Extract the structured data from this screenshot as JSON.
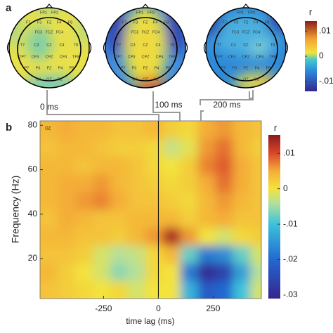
{
  "panel_a": {
    "label": "a",
    "maps": [
      {
        "label": "0 ms"
      },
      {
        "label": "100 ms"
      },
      {
        "label": "200 ms"
      }
    ],
    "electrodes": [
      "FP1",
      "FP2",
      "F7",
      "F3",
      "FZ",
      "F4",
      "F8",
      "FC3",
      "FCZ",
      "FC4",
      "T7",
      "C3",
      "CZ",
      "C4",
      "T8",
      "TP7",
      "CP3",
      "CPZ",
      "CP4",
      "TP8",
      "P7",
      "P3",
      "PZ",
      "P4",
      "P8",
      "O1",
      "OZ",
      "O2"
    ],
    "colorbar": {
      "title": "r",
      "lim": [
        -0.014,
        0.014
      ],
      "ticks": [
        {
          "value": 0.01,
          "label": ".01"
        },
        0,
        {
          "value": -0.01,
          "label": "-.01"
        }
      ]
    }
  },
  "chart_data": {
    "type": "heatmap",
    "label": "b",
    "annotation": "OZ",
    "xlabel": "time lag (ms)",
    "ylabel": "Frequency (Hz)",
    "x": [
      -500,
      -420,
      -340,
      -260,
      -180,
      -100,
      -20,
      60,
      140,
      220,
      300,
      380,
      460
    ],
    "y": [
      6,
      14,
      22,
      30,
      38,
      46,
      54,
      62,
      70,
      78
    ],
    "values": [
      [
        0.003,
        0.002,
        0.001,
        0.0,
        0.001,
        -0.002,
        0.0,
        0.0,
        -0.012,
        -0.022,
        -0.02,
        -0.01,
        -0.002
      ],
      [
        0.004,
        0.002,
        0.0,
        -0.002,
        -0.006,
        -0.004,
        0.001,
        0.0,
        -0.018,
        -0.03,
        -0.026,
        -0.014,
        -0.004
      ],
      [
        0.003,
        0.003,
        0.002,
        -0.002,
        -0.004,
        -0.003,
        0.001,
        0.004,
        -0.008,
        -0.018,
        -0.016,
        -0.008,
        -0.002
      ],
      [
        0.004,
        0.004,
        0.003,
        0.003,
        0.002,
        0.004,
        0.006,
        0.013,
        0.006,
        0.0,
        -0.002,
        0.001,
        0.002
      ],
      [
        0.003,
        0.005,
        0.004,
        0.003,
        0.003,
        0.004,
        0.004,
        0.004,
        0.002,
        0.004,
        0.005,
        0.003,
        0.003
      ],
      [
        0.004,
        0.005,
        0.006,
        0.007,
        0.005,
        0.003,
        0.003,
        0.002,
        0.001,
        0.004,
        0.006,
        0.004,
        0.003
      ],
      [
        0.004,
        0.005,
        0.005,
        0.006,
        0.004,
        0.003,
        0.002,
        0.001,
        0.002,
        0.005,
        0.008,
        0.005,
        0.003
      ],
      [
        0.004,
        0.004,
        0.003,
        0.004,
        0.004,
        0.003,
        0.001,
        0.0,
        0.002,
        0.007,
        0.009,
        0.005,
        0.003
      ],
      [
        0.003,
        0.004,
        0.004,
        0.003,
        0.002,
        0.002,
        0.001,
        -0.003,
        -0.001,
        0.006,
        0.008,
        0.004,
        0.002
      ],
      [
        0.004,
        0.005,
        0.004,
        0.004,
        0.003,
        0.003,
        0.004,
        0.002,
        0.001,
        0.005,
        0.006,
        0.004,
        0.003
      ]
    ],
    "xlim": [
      -540,
      470
    ],
    "xticks": [
      -250,
      0,
      250
    ],
    "ylim": [
      2,
      82
    ],
    "yticks": [
      20,
      40,
      60,
      80
    ],
    "vline": 0,
    "colorbar": {
      "title": "r",
      "lim": [
        -0.031,
        0.0152
      ],
      "ticks": [
        {
          "value": 0.01,
          "label": ".01"
        },
        0,
        {
          "value": -0.01,
          "label": "-.01"
        },
        {
          "value": -0.02,
          "label": "-.02"
        },
        {
          "value": -0.03,
          "label": "-.03"
        }
      ]
    },
    "colorscale": [
      [
        -0.031,
        "#35258f"
      ],
      [
        -0.02,
        "#2368d0"
      ],
      [
        -0.01,
        "#3cc3dc"
      ],
      [
        -0.004,
        "#b5e09a"
      ],
      [
        0,
        "#f3e33c"
      ],
      [
        0.005,
        "#f4ad38"
      ],
      [
        0.01,
        "#d9472a"
      ],
      [
        0.0152,
        "#8a1b1b"
      ]
    ]
  }
}
